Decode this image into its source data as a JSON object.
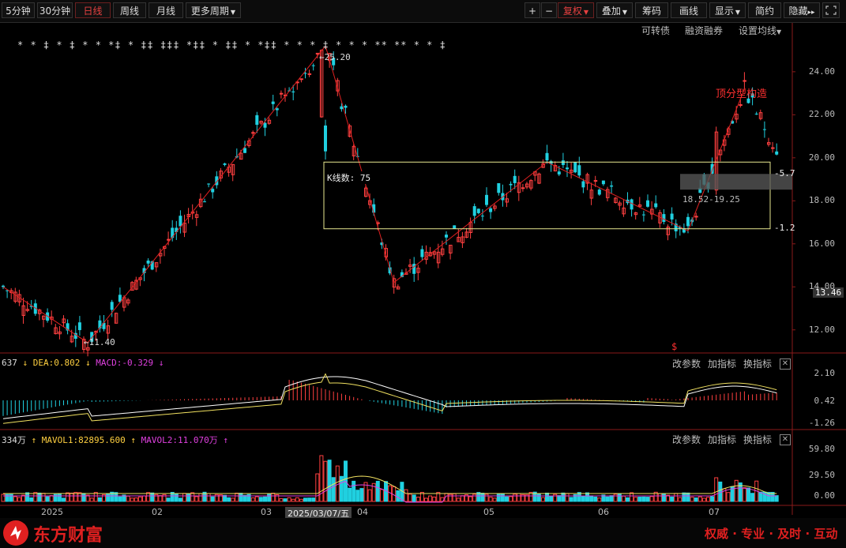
{
  "toolbar": {
    "left": [
      "5分钟",
      "30分钟",
      "日线",
      "周线",
      "月线",
      "更多周期"
    ],
    "active": "日线",
    "plus": "+",
    "minus": "−",
    "right": [
      "复权",
      "叠加",
      "筹码",
      "画线",
      "显示",
      "简约",
      "隐藏"
    ],
    "hide_arrows": "▸▸",
    "fullscreen_icon": "fullscreen-icon"
  },
  "sub_toolbar": {
    "convertible": "可转债",
    "margin": "融资融券",
    "ma_settings": "设置均线"
  },
  "price_chart": {
    "annotation_high": "←25.20",
    "annotation_low": "←11.40",
    "box_label": "K线数: 75",
    "right_label_top": "-5.7",
    "right_label_bottom": "-1.2",
    "range_label": "18.52-19.25",
    "pattern_label": "顶分型构造",
    "current_price": "13.46",
    "dollar_mark": "$",
    "star_row": "* * ‡ * ‡ * * *‡ * ‡‡ ‡‡‡ *‡‡ * ‡‡ * *‡‡ * * * ‡ * * * ** ** * * ‡"
  },
  "macd": {
    "label_prefix": "637",
    "dea": "DEA:0.802",
    "macd": "MACD:-0.329",
    "controls": [
      "改参数",
      "加指标",
      "换指标"
    ],
    "axis": [
      "2.10",
      "0.42",
      "-1.26"
    ]
  },
  "volume": {
    "label_prefix": "334万",
    "mavol1": "MAVOL1:82895.600",
    "mavol2": "MAVOL2:11.070万",
    "controls": [
      "改参数",
      "加指标",
      "换指标"
    ],
    "axis": [
      "59.80",
      "29.50",
      "0.00"
    ]
  },
  "dates": [
    "2025",
    "02",
    "03",
    "2025/03/07/五",
    "04",
    "05",
    "06",
    "07"
  ],
  "colors": {
    "up": "#ff4040",
    "down": "#20d0e0",
    "brand": "#e02020"
  },
  "footer": {
    "brand": "东方财富",
    "slogan": "权威 · 专业 · 及时 · 互动"
  },
  "chart_data": {
    "type": "candlestick",
    "ylim": [
      11,
      25.5
    ],
    "yticks": [
      12,
      14,
      16,
      18,
      20,
      22,
      24
    ],
    "ytick_labels": [
      "12.00",
      "14.00",
      "16.00",
      "18.00",
      "20.00",
      "22.00",
      "24.00"
    ],
    "high_point": 25.2,
    "low_point": 11.4,
    "zigzag": [
      [
        0,
        14.0
      ],
      [
        21,
        11.4
      ],
      [
        80,
        25.2
      ],
      [
        97,
        14.2
      ],
      [
        135,
        19.8
      ],
      [
        170,
        16.6
      ],
      [
        184,
        23.2
      ]
    ],
    "box": {
      "low": 16.7,
      "high": 19.8,
      "bars": 75
    },
    "range": [
      18.52,
      19.25
    ]
  }
}
